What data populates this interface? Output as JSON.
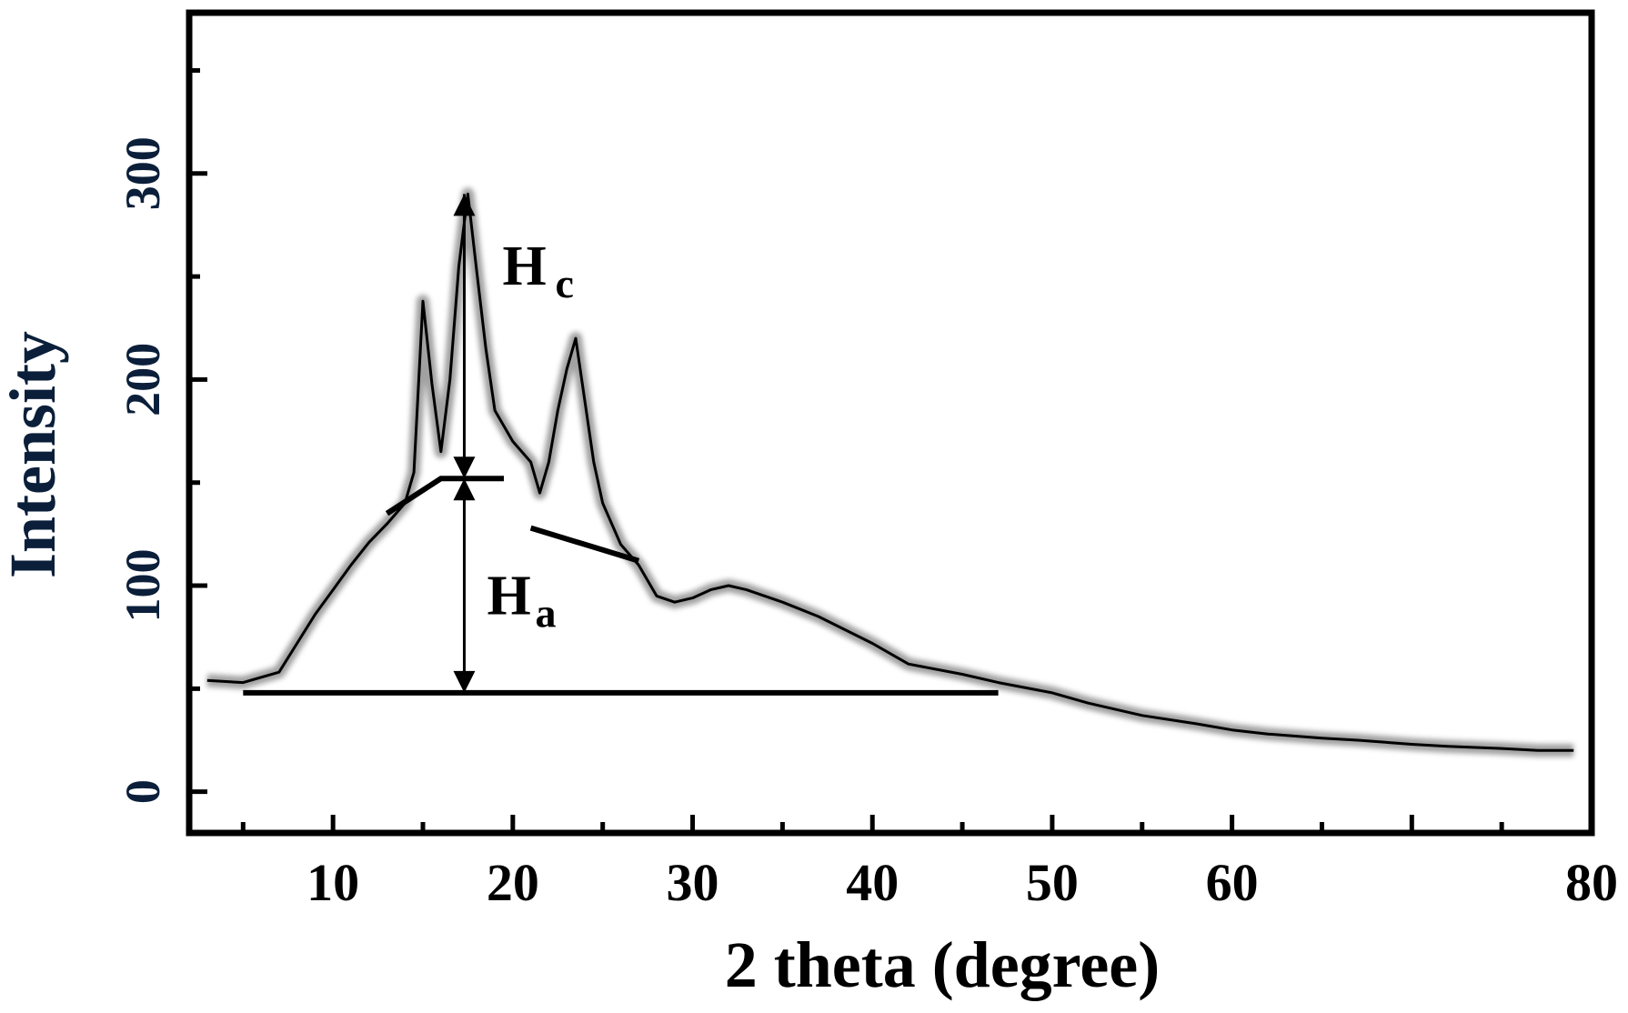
{
  "chart_data": {
    "type": "line",
    "xlabel": "2 theta (degree)",
    "ylabel": "Intensity",
    "xlim": [
      2,
      80
    ],
    "ylim": [
      -20,
      378
    ],
    "x_ticks": [
      10,
      20,
      30,
      40,
      50,
      60,
      70,
      80
    ],
    "x_tick_labels": [
      "10",
      "20",
      "30",
      "40",
      "50",
      "60",
      "",
      "80"
    ],
    "y_ticks": [
      0,
      100,
      200,
      300
    ],
    "y_tick_labels": [
      "0",
      "100",
      "200",
      "300"
    ],
    "grid": false,
    "series": [
      {
        "x": [
          3,
          5,
          7,
          8,
          9,
          10,
          11,
          12,
          13,
          14,
          14.5,
          15,
          15.5,
          16,
          16.5,
          17,
          17.5,
          18,
          18.5,
          19,
          20,
          21,
          21.5,
          22,
          22.5,
          23,
          23.5,
          24,
          24.5,
          25,
          26,
          27,
          28,
          29,
          30,
          31,
          32,
          33,
          35,
          37,
          40,
          42,
          45,
          47,
          50,
          52,
          55,
          58,
          60,
          62,
          65,
          67,
          70,
          72,
          75,
          77,
          79
        ],
        "values": [
          54,
          53,
          58,
          72,
          86,
          98,
          110,
          121,
          130,
          140,
          155,
          238,
          198,
          165,
          200,
          255,
          290,
          252,
          215,
          185,
          170,
          160,
          145,
          160,
          185,
          205,
          220,
          190,
          160,
          140,
          120,
          110,
          95,
          92,
          94,
          98,
          100,
          98,
          92,
          85,
          72,
          62,
          57,
          53,
          48,
          43,
          37,
          33,
          30,
          28,
          26,
          25,
          23,
          22,
          21,
          20,
          20
        ]
      }
    ],
    "baseline": {
      "x": [
        5,
        47
      ],
      "y": [
        48,
        48
      ]
    },
    "amorphous_line": [
      {
        "x": [
          13,
          16,
          19.5
        ],
        "y": [
          135,
          152,
          152
        ]
      },
      {
        "x": [
          21,
          27
        ],
        "y": [
          128,
          112
        ]
      }
    ],
    "annotations": [
      {
        "label": "H",
        "sub": "c",
        "x": 17.3,
        "y_from": 152,
        "y_to": 290
      },
      {
        "label": "H",
        "sub": "a",
        "x": 17.3,
        "y_from": 48,
        "y_to": 152
      }
    ]
  }
}
